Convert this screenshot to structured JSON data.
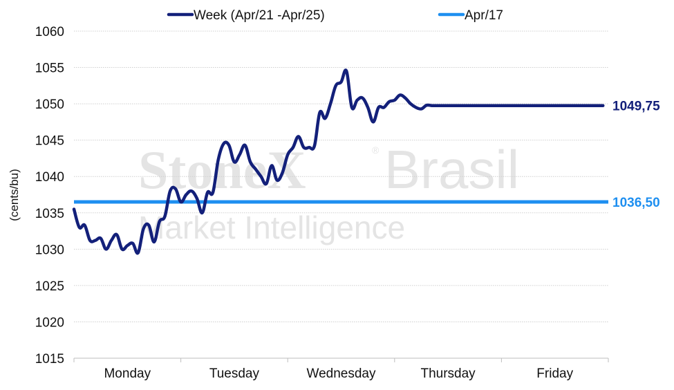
{
  "watermark": {
    "line1_bold": "StoneX",
    "line1_reg": "®",
    "line1_light": "Brasil",
    "line2": "Market Intelligence"
  },
  "chart_data": {
    "type": "line",
    "ylabel": "(cents/bu)",
    "ylim": [
      1015,
      1060
    ],
    "yticks": [
      "1060",
      "1055",
      "1050",
      "1045",
      "1040",
      "1035",
      "1030",
      "1025",
      "1020",
      "1015"
    ],
    "categories": [
      "Monday",
      "Tuesday",
      "Wednesday",
      "Thursday",
      "Friday"
    ],
    "grid": true,
    "legend_position": "top",
    "series": [
      {
        "name": "Week (Apr/21 -Apr/25)",
        "color": "#13207a",
        "x": [
          0.0,
          0.05,
          0.1,
          0.15,
          0.2,
          0.25,
          0.3,
          0.35,
          0.4,
          0.45,
          0.5,
          0.55,
          0.6,
          0.65,
          0.7,
          0.75,
          0.8,
          0.85,
          0.9,
          0.95,
          1.0,
          1.05,
          1.1,
          1.15,
          1.2,
          1.25,
          1.3,
          1.35,
          1.4,
          1.45,
          1.5,
          1.55,
          1.6,
          1.65,
          1.7,
          1.75,
          1.8,
          1.85,
          1.9,
          1.95,
          2.0,
          2.05,
          2.1,
          2.15,
          2.2,
          2.25,
          2.3,
          2.35,
          2.4,
          2.45,
          2.5,
          2.55,
          2.6,
          2.65,
          2.7,
          2.75,
          2.8,
          2.85,
          2.9,
          2.95,
          3.0,
          3.05,
          3.1,
          3.15,
          3.2,
          3.25,
          3.3,
          3.35,
          3.4,
          3.45,
          3.5,
          3.55,
          3.6,
          3.65,
          3.7,
          3.75,
          3.8,
          3.85,
          3.9,
          3.95,
          4.0,
          4.05,
          4.1,
          4.15,
          4.2,
          4.25,
          4.3,
          4.35,
          4.4,
          4.45,
          4.5,
          4.55,
          4.6,
          4.65,
          4.7,
          4.75,
          4.8,
          4.85,
          4.9,
          4.95
        ],
        "values": [
          1035.5,
          1033.0,
          1033.3,
          1031.2,
          1031.2,
          1031.5,
          1030.0,
          1031.2,
          1032.0,
          1030.0,
          1030.5,
          1030.8,
          1029.5,
          1032.8,
          1033.3,
          1031.0,
          1033.8,
          1034.5,
          1038.0,
          1038.3,
          1036.5,
          1037.5,
          1038.0,
          1037.0,
          1035.0,
          1037.8,
          1037.8,
          1042.3,
          1044.5,
          1044.3,
          1042.0,
          1043.0,
          1044.3,
          1042.0,
          1041.0,
          1040.0,
          1039.0,
          1041.5,
          1039.5,
          1040.5,
          1043.0,
          1044.0,
          1045.5,
          1044.0,
          1044.0,
          1044.2,
          1048.8,
          1048.0,
          1050.0,
          1052.5,
          1053.0,
          1054.5,
          1049.5,
          1050.5,
          1050.8,
          1049.5,
          1047.5,
          1049.5,
          1049.5,
          1050.3,
          1050.5,
          1051.2,
          1050.8,
          1050.0,
          1049.5,
          1049.3,
          1049.8,
          1049.75,
          1049.75,
          1049.75,
          1049.75,
          1049.75,
          1049.75,
          1049.75,
          1049.75,
          1049.75,
          1049.75,
          1049.75,
          1049.75,
          1049.75,
          1049.75,
          1049.75,
          1049.75,
          1049.75,
          1049.75,
          1049.75,
          1049.75,
          1049.75,
          1049.75,
          1049.75,
          1049.75,
          1049.75,
          1049.75,
          1049.75,
          1049.75,
          1049.75,
          1049.75,
          1049.75,
          1049.75,
          1049.75
        ]
      },
      {
        "name": "Apr/17",
        "color": "#1e8ff0",
        "x": [
          0.0,
          5.0
        ],
        "values": [
          1036.5,
          1036.5
        ]
      }
    ],
    "end_labels": [
      {
        "text": "1049,75",
        "color": "#13207a",
        "value": 1049.75
      },
      {
        "text": "1036,50",
        "color": "#1e8ff0",
        "value": 1036.5
      }
    ]
  }
}
